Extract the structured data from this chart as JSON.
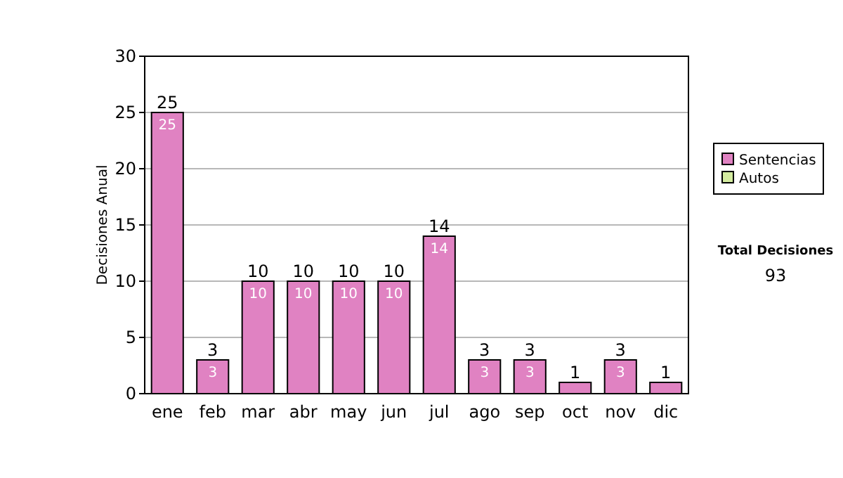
{
  "chart_data": {
    "type": "bar",
    "stacked": true,
    "ylabel": "Decisiones Anual",
    "categories": [
      "ene",
      "feb",
      "mar",
      "abr",
      "may",
      "jun",
      "jul",
      "ago",
      "sep",
      "oct",
      "nov",
      "dic"
    ],
    "series": [
      {
        "name": "Sentencias",
        "color": "#e082c2",
        "values": [
          25,
          3,
          10,
          10,
          10,
          10,
          14,
          3,
          3,
          1,
          3,
          1
        ],
        "value_labels": [
          "25",
          "3",
          "10",
          "10",
          "10",
          "10",
          "14",
          "3",
          "3",
          null,
          "3",
          null
        ]
      },
      {
        "name": "Autos",
        "color": "#d4eca0",
        "values": [
          0,
          0,
          0,
          0,
          0,
          0,
          0,
          0,
          0,
          0,
          0,
          0
        ]
      }
    ],
    "totals": [
      "25",
      "3",
      "10",
      "10",
      "10",
      "10",
      "14",
      "3",
      "3",
      "1",
      "3",
      "1"
    ],
    "ylim": [
      0,
      30
    ],
    "yticks": [
      0,
      5,
      10,
      15,
      20,
      25,
      30
    ],
    "grid": "y",
    "legend": "right",
    "annotations": [
      "Total Decisiones",
      "93"
    ]
  }
}
